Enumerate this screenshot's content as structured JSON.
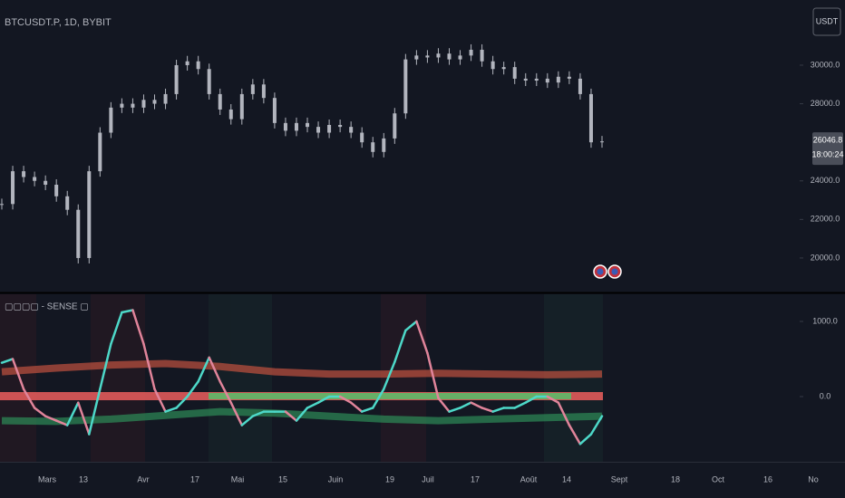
{
  "chart": {
    "symbol": "BTCUSDT.P, 1D, BYBIT",
    "currency": "USDT",
    "last_price": {
      "value": 26046.8,
      "label": "26046.8"
    },
    "countdown": "18:00:24",
    "price": {
      "type": "candlestick",
      "closes": [
        22800,
        24500,
        24200,
        24000,
        23800,
        23200,
        22500,
        20000,
        24500,
        26500,
        27800,
        28000,
        27800,
        28200,
        28000,
        28500,
        30000,
        30200,
        29800,
        28500,
        27700,
        27200,
        28500,
        29000,
        28300,
        27000,
        26600,
        27000,
        26800,
        26500,
        26900,
        26800,
        26500,
        26000,
        25500,
        26200,
        27500,
        30300,
        30500,
        30400,
        30600,
        30300,
        30500,
        30800,
        30200,
        29800,
        29900,
        29300,
        29200,
        29300,
        29100,
        29400,
        29300,
        28500,
        26000,
        26046.8
      ],
      "color": "#b2b5be",
      "ylim": [
        18260,
        33380
      ],
      "yticks": [
        {
          "value": 20000,
          "label": "20000.0"
        },
        {
          "value": 22000,
          "label": "22000.0"
        },
        {
          "value": 24000,
          "label": "24000.0"
        },
        {
          "value": 28000,
          "label": "28000.0"
        },
        {
          "value": 30000,
          "label": "30000.0"
        }
      ]
    },
    "indicator": {
      "type": "line",
      "title": "▢▢▢▢ - SENSE ▢",
      "values": [
        450,
        500,
        100,
        -150,
        -260,
        -320,
        -380,
        -80,
        -500,
        100,
        700,
        1120,
        1150,
        700,
        100,
        -200,
        -150,
        0,
        200,
        520,
        200,
        -80,
        -380,
        -260,
        -200,
        -200,
        -200,
        -320,
        -150,
        -80,
        0,
        0,
        -80,
        -200,
        -150,
        100,
        460,
        880,
        1000,
        580,
        -20,
        -200,
        -150,
        -80,
        -150,
        -200,
        -150,
        -150,
        -80,
        0,
        0,
        -80,
        -380,
        -630,
        -500,
        -260
      ],
      "rise_color": "#4dd8c8",
      "fall_color": "#e0849a",
      "upper_band": [
        330,
        380,
        420,
        440,
        400,
        330,
        300,
        300,
        310,
        300,
        290,
        300
      ],
      "lower_band": [
        -320,
        -330,
        -300,
        -250,
        -200,
        -220,
        -260,
        -300,
        -320,
        -300,
        -280,
        -260
      ],
      "upper_color": "#c0513f",
      "lower_color": "#2e8b57",
      "ylim": [
        -867,
        1361
      ],
      "yticks": [
        {
          "value": 0,
          "label": "0.0"
        },
        {
          "value": 1000,
          "label": "1000.0"
        }
      ]
    },
    "time_axis": [
      "Mars",
      "13",
      "Avr",
      "17",
      "Mai",
      "15",
      "Juin",
      "19",
      "Juil",
      "17",
      "Août",
      "14",
      "Sept",
      "18",
      "Oct",
      "16",
      "No"
    ]
  }
}
